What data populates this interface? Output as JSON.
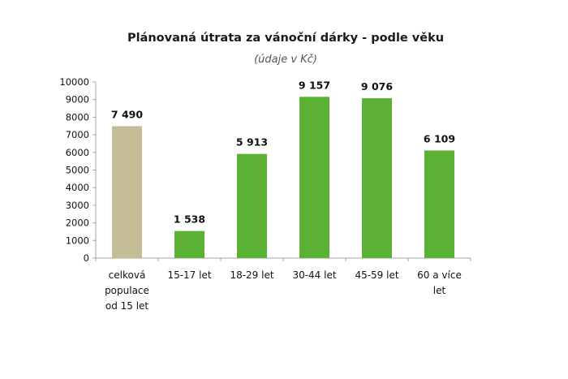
{
  "chart_data": {
    "type": "bar",
    "title": "Plánovaná útrata za vánoční dárky - podle věku",
    "subtitle": "(údaje v Kč)",
    "xlabel": "",
    "ylabel": "",
    "ylim": [
      0,
      10000
    ],
    "yticks": [
      0,
      1000,
      2000,
      3000,
      4000,
      5000,
      6000,
      7000,
      8000,
      9000,
      10000
    ],
    "grid": false,
    "categories": [
      [
        "celková",
        "populace",
        "od 15 let"
      ],
      [
        "15-17 let"
      ],
      [
        "18-29 let"
      ],
      [
        "30-44 let"
      ],
      [
        "45-59 let"
      ],
      [
        "60 a více",
        "let"
      ]
    ],
    "values": [
      7490,
      1538,
      5913,
      9157,
      9076,
      6109
    ],
    "data_labels": [
      "7 490",
      "1 538",
      "5 913",
      "9 157",
      "9 076",
      "6 109"
    ],
    "colors": [
      "#c4bd97",
      "#5bb133",
      "#5bb133",
      "#5bb133",
      "#5bb133",
      "#5bb133"
    ],
    "axis_color": "#a6a6a6"
  }
}
